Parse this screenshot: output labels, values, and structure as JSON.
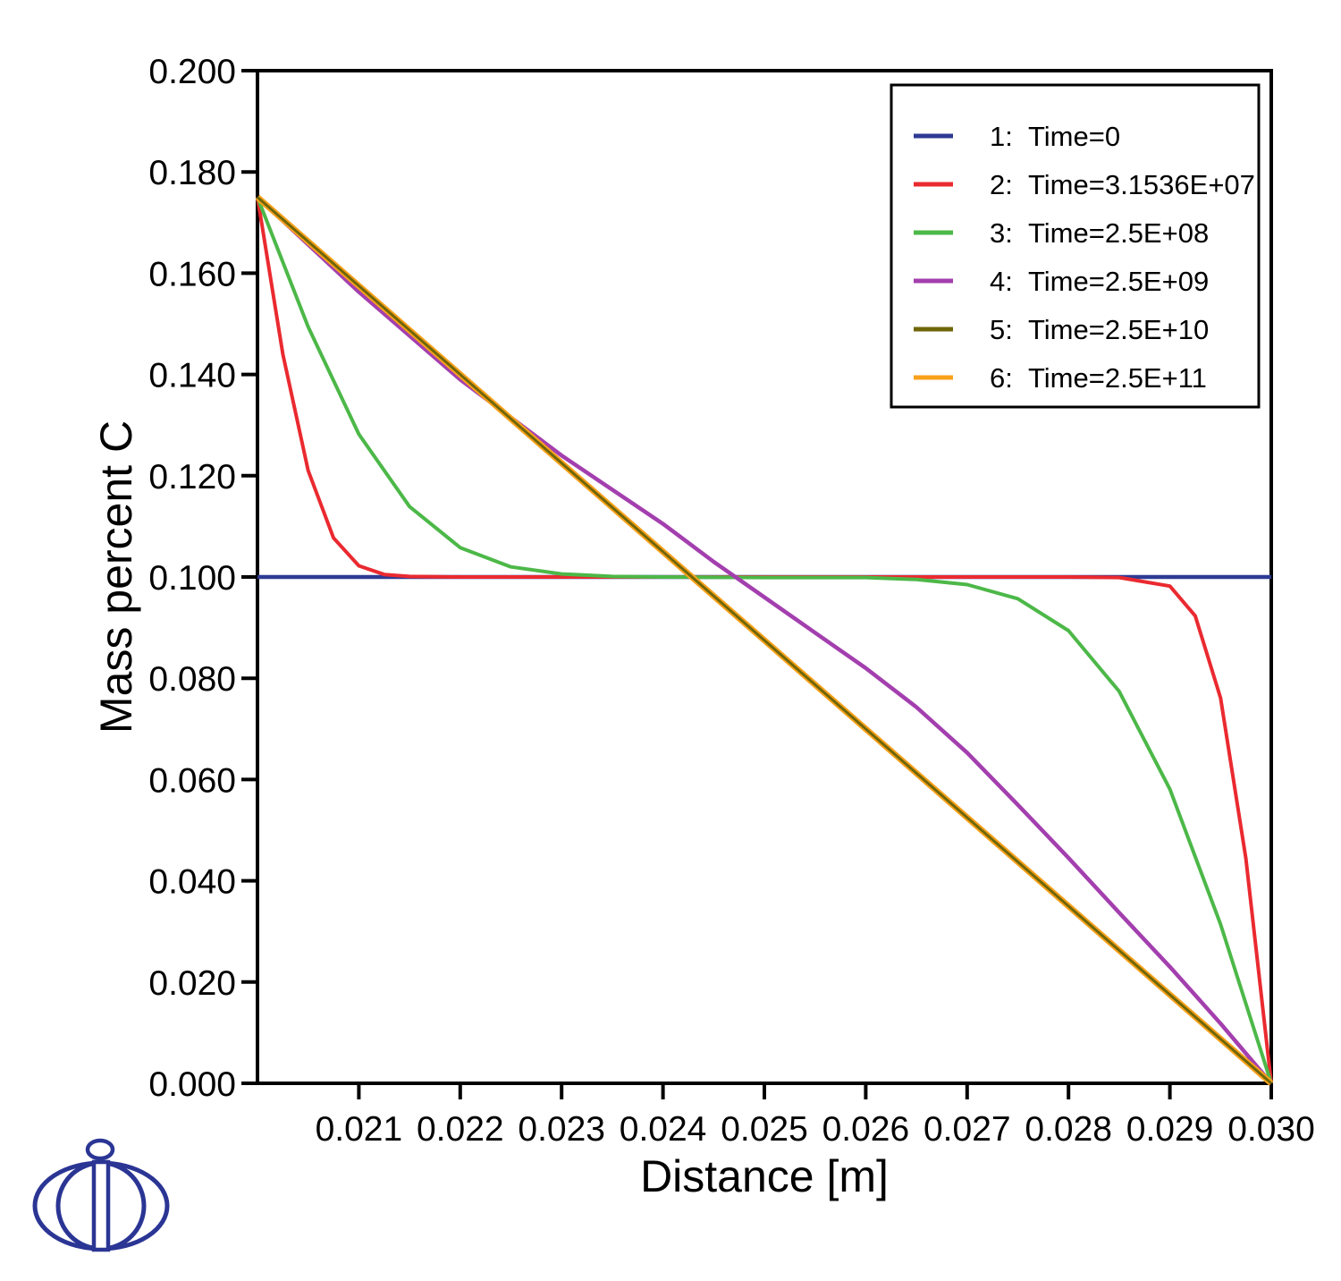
{
  "chart_data": {
    "type": "line",
    "title": "",
    "xlabel": "Distance [m]",
    "ylabel": "Mass percent C",
    "xlim": [
      0.02,
      0.03
    ],
    "ylim": [
      0.0,
      0.2
    ],
    "grid": false,
    "legend_position": "top-right",
    "x_axis": {
      "title": "Distance [m]",
      "ticks": [
        {
          "value": 0.021,
          "label": "0.021"
        },
        {
          "value": 0.022,
          "label": "0.022"
        },
        {
          "value": 0.023,
          "label": "0.023"
        },
        {
          "value": 0.024,
          "label": "0.024"
        },
        {
          "value": 0.025,
          "label": "0.025"
        },
        {
          "value": 0.026,
          "label": "0.026"
        },
        {
          "value": 0.027,
          "label": "0.027"
        },
        {
          "value": 0.028,
          "label": "0.028"
        },
        {
          "value": 0.029,
          "label": "0.029"
        },
        {
          "value": 0.03,
          "label": "0.030"
        }
      ]
    },
    "y_axis": {
      "title": "Mass percent C",
      "ticks": [
        {
          "value": 0.2,
          "label": "0.200"
        },
        {
          "value": 0.18,
          "label": "0.180"
        },
        {
          "value": 0.16,
          "label": "0.160"
        },
        {
          "value": 0.14,
          "label": "0.140"
        },
        {
          "value": 0.12,
          "label": "0.120"
        },
        {
          "value": 0.1,
          "label": "0.100"
        },
        {
          "value": 0.08,
          "label": "0.080"
        },
        {
          "value": 0.06,
          "label": "0.060"
        },
        {
          "value": 0.04,
          "label": "0.040"
        },
        {
          "value": 0.02,
          "label": "0.020"
        },
        {
          "value": 0.0,
          "label": "0.000"
        }
      ]
    },
    "draw_order": [
      0,
      1,
      2,
      3,
      5,
      4
    ],
    "series": [
      {
        "legend_num": "1:",
        "name": "Time=0",
        "color": "#2e3b94",
        "width": 4.5,
        "x": [
          0.02,
          0.03
        ],
        "y": [
          0.1,
          0.1
        ]
      },
      {
        "legend_num": "2:",
        "name": "Time=3.1536E+07",
        "color": "#ea2a30",
        "width": 4,
        "x": [
          0.02,
          0.02025,
          0.0205,
          0.02075,
          0.021,
          0.02125,
          0.0215,
          0.022,
          0.023,
          0.024,
          0.025,
          0.026,
          0.027,
          0.028,
          0.0285,
          0.029,
          0.02925,
          0.0295,
          0.02975,
          0.03
        ],
        "y": [
          0.175,
          0.144,
          0.121,
          0.1077,
          0.1022,
          0.1005,
          0.1001,
          0.1,
          0.1,
          0.1,
          0.1,
          0.1,
          0.1,
          0.1,
          0.0999,
          0.0982,
          0.0923,
          0.0761,
          0.0444,
          0.0
        ]
      },
      {
        "legend_num": "3:",
        "name": "Time=2.5E+08",
        "color": "#4cb848",
        "width": 4,
        "x": [
          0.02,
          0.0205,
          0.021,
          0.0215,
          0.022,
          0.0225,
          0.023,
          0.0235,
          0.024,
          0.025,
          0.026,
          0.0265,
          0.027,
          0.0275,
          0.028,
          0.0285,
          0.029,
          0.0295,
          0.03
        ],
        "y": [
          0.175,
          0.1494,
          0.1282,
          0.1139,
          0.1058,
          0.102,
          0.1006,
          0.1001,
          0.1,
          0.0999,
          0.0999,
          0.0995,
          0.0985,
          0.0957,
          0.0894,
          0.0774,
          0.0581,
          0.0314,
          0.0
        ]
      },
      {
        "legend_num": "4:",
        "name": "Time=2.5E+09",
        "color": "#a33fae",
        "width": 4.5,
        "x": [
          0.02,
          0.021,
          0.022,
          0.023,
          0.024,
          0.0245,
          0.025,
          0.0255,
          0.026,
          0.0265,
          0.027,
          0.0275,
          0.028,
          0.0285,
          0.029,
          0.0295,
          0.03
        ],
        "y": [
          0.175,
          0.1563,
          0.139,
          0.124,
          0.1105,
          0.103,
          0.096,
          0.089,
          0.082,
          0.0743,
          0.0653,
          0.055,
          0.0445,
          0.0337,
          0.023,
          0.0118,
          0.0
        ]
      },
      {
        "legend_num": "5:",
        "name": "Time=2.5E+10",
        "color": "#6f6608",
        "width": 3,
        "x": [
          0.02,
          0.025,
          0.03
        ],
        "y": [
          0.175,
          0.0875,
          0.0
        ]
      },
      {
        "legend_num": "6:",
        "name": "Time=2.5E+11",
        "color": "#f9a11b",
        "width": 7,
        "x": [
          0.02,
          0.025,
          0.03
        ],
        "y": [
          0.175,
          0.0875,
          0.0
        ]
      }
    ]
  },
  "legend": {
    "items": [
      {
        "num": "1:",
        "label": "Time=0"
      },
      {
        "num": "2:",
        "label": "Time=3.1536E+07"
      },
      {
        "num": "3:",
        "label": "Time=2.5E+08"
      },
      {
        "num": "4:",
        "label": "Time=2.5E+09"
      },
      {
        "num": "5:",
        "label": "Time=2.5E+10"
      },
      {
        "num": "6:",
        "label": "Time=2.5E+11"
      }
    ]
  },
  "logo": {
    "color": "#2a3594"
  },
  "frame_color": "#000000",
  "background_color": "#ffffff"
}
